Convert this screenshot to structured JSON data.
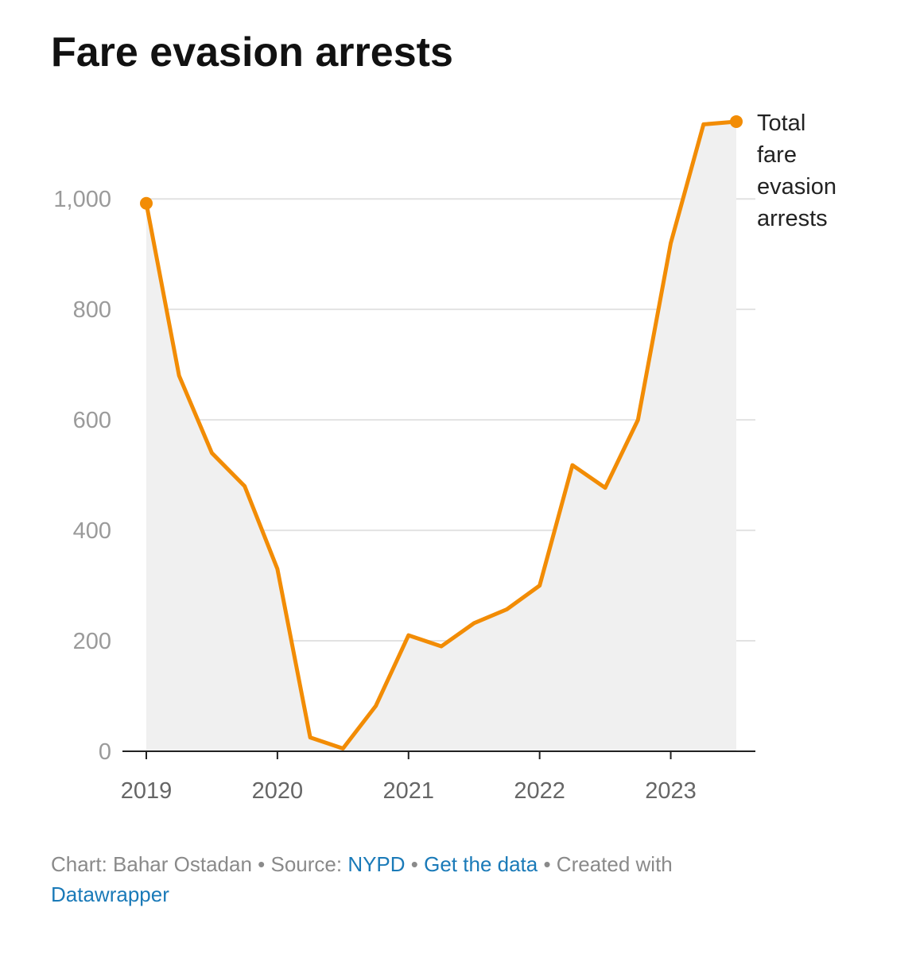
{
  "footer": {
    "chart_prefix": "Chart: ",
    "author": "Bahar Ostadan",
    "sep1": " • ",
    "source_prefix": "Source: ",
    "source": "NYPD",
    "sep2": " • ",
    "get_data": "Get the data",
    "sep3": " • ",
    "created_with": "Created with ",
    "tool": "Datawrapper"
  },
  "colors": {
    "line": "#f28c05",
    "area": "#f0f0f0",
    "grid": "#e2e2e2",
    "axis": "#222222",
    "link": "#1a7ab8"
  },
  "chart_data": {
    "type": "area",
    "title": "Fare evasion arrests",
    "xlabel": "",
    "ylabel": "",
    "xlim": [
      2019,
      2023.5
    ],
    "ylim": [
      0,
      1150
    ],
    "yticks": [
      0,
      200,
      400,
      600,
      800,
      1000
    ],
    "ytick_labels": [
      "0",
      "200",
      "400",
      "600",
      "800",
      "1,000"
    ],
    "xticks": [
      2019,
      2020,
      2021,
      2022,
      2023
    ],
    "xtick_labels": [
      "2019",
      "2020",
      "2021",
      "2022",
      "2023"
    ],
    "grid": true,
    "series": [
      {
        "name": "Total fare evasion arrests",
        "label_lines": [
          "Total",
          "fare",
          "evasion",
          "arrests"
        ],
        "x": [
          2019,
          2019.25,
          2019.5,
          2019.75,
          2020,
          2020.25,
          2020.5,
          2020.75,
          2021,
          2021.25,
          2021.5,
          2021.75,
          2022,
          2022.25,
          2022.5,
          2022.75,
          2023,
          2023.25,
          2023.5
        ],
        "values": [
          992,
          680,
          540,
          480,
          330,
          25,
          5,
          82,
          210,
          190,
          232,
          257,
          300,
          518,
          477,
          600,
          920,
          1135,
          1140
        ]
      }
    ]
  }
}
